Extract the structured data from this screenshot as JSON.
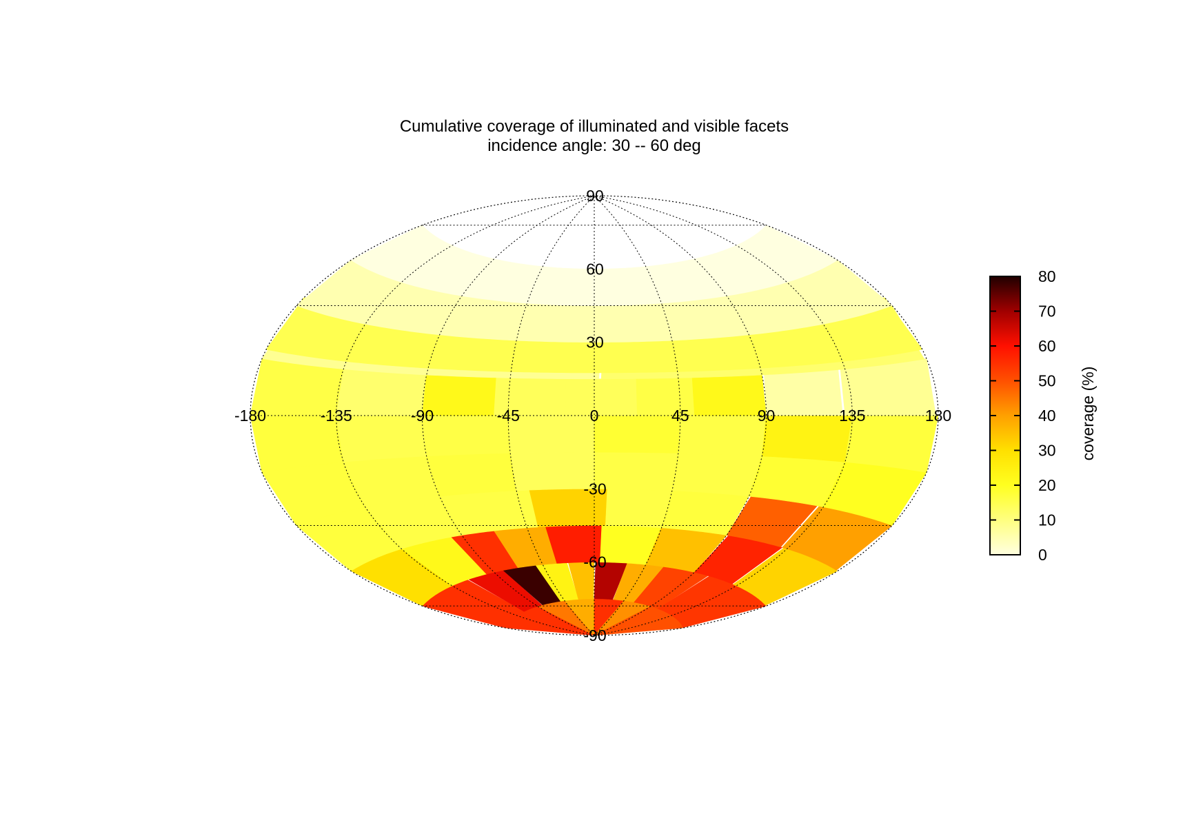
{
  "chart_data": {
    "type": "heatmap",
    "projection": "aitoff",
    "title": "Cumulative coverage of illuminated and visible facets",
    "subtitle": "incidence angle: 30 -- 60 deg",
    "xticks": [
      -180,
      -135,
      -90,
      -45,
      0,
      45,
      90,
      135,
      180
    ],
    "yticks": [
      90,
      60,
      30,
      -30,
      -60,
      -90
    ],
    "xlim": [
      -180,
      180
    ],
    "ylim": [
      -90,
      90
    ],
    "grid": true,
    "colorbar": {
      "label": "coverage (%)",
      "range": [
        0,
        80
      ],
      "ticks": [
        0,
        10,
        20,
        30,
        40,
        50,
        60,
        70,
        80
      ],
      "colors": [
        "#ffffe0",
        "#ffff80",
        "#ffff20",
        "#ffe000",
        "#ffa000",
        "#ff5000",
        "#ff1000",
        "#a00000",
        "#200000"
      ]
    },
    "cells": [
      {
        "lon": -157.5,
        "lat": 52.5,
        "value": 0
      },
      {
        "lon": -67.5,
        "lat": 22.5,
        "value": 8
      },
      {
        "lon": 7.5,
        "lat": 37.5,
        "value": 5
      },
      {
        "lon": 15,
        "lat": 25,
        "value": 15
      },
      {
        "lon": 75,
        "lat": 22.5,
        "value": 12
      },
      {
        "lon": 150,
        "lat": 7.5,
        "value": 8
      },
      {
        "lon": -157.5,
        "lat": 7.5,
        "value": 16
      },
      {
        "lon": -112.5,
        "lat": 7.5,
        "value": 12
      },
      {
        "lon": -67.5,
        "lat": 7.5,
        "value": 22
      },
      {
        "lon": -37.5,
        "lat": 7.5,
        "value": 14
      },
      {
        "lon": 7.5,
        "lat": 7.5,
        "value": 14
      },
      {
        "lon": 37.5,
        "lat": 7.5,
        "value": 16
      },
      {
        "lon": 67.5,
        "lat": 7.5,
        "value": 22
      },
      {
        "lon": 112.5,
        "lat": 7.5,
        "value": 6
      },
      {
        "lon": -157.5,
        "lat": -7.5,
        "value": 17
      },
      {
        "lon": -112.5,
        "lat": -7.5,
        "value": 15
      },
      {
        "lon": -67.5,
        "lat": -7.5,
        "value": 16
      },
      {
        "lon": -22.5,
        "lat": -7.5,
        "value": 14
      },
      {
        "lon": 22.5,
        "lat": -7.5,
        "value": 18
      },
      {
        "lon": 67.5,
        "lat": -7.5,
        "value": 16
      },
      {
        "lon": 112.5,
        "lat": -7.5,
        "value": 24
      },
      {
        "lon": 157.5,
        "lat": -7.5,
        "value": 17
      },
      {
        "lon": -157.5,
        "lat": -22.5,
        "value": 17
      },
      {
        "lon": -112.5,
        "lat": -22.5,
        "value": 16
      },
      {
        "lon": -67.5,
        "lat": -22.5,
        "value": 17
      },
      {
        "lon": -22.5,
        "lat": -22.5,
        "value": 14
      },
      {
        "lon": 22.5,
        "lat": -22.5,
        "value": 16
      },
      {
        "lon": 67.5,
        "lat": -22.5,
        "value": 16
      },
      {
        "lon": 112.5,
        "lat": -22.5,
        "value": 18
      },
      {
        "lon": 157.5,
        "lat": -22.5,
        "value": 20
      },
      {
        "lon": -157.5,
        "lat": -37.5,
        "value": 17
      },
      {
        "lon": -112.5,
        "lat": -37.5,
        "value": 16
      },
      {
        "lon": -67.5,
        "lat": -37.5,
        "value": 16
      },
      {
        "lon": -7.5,
        "lat": -37.5,
        "value": 32
      },
      {
        "lon": 22.5,
        "lat": -37.5,
        "value": 16
      },
      {
        "lon": 67.5,
        "lat": -37.5,
        "value": 17
      },
      {
        "lon": 112.5,
        "lat": -37.5,
        "value": 48
      },
      {
        "lon": 150,
        "lat": -37.5,
        "value": 40
      },
      {
        "lon": -157.5,
        "lat": -52.5,
        "value": 30
      },
      {
        "lon": -112.5,
        "lat": -52.5,
        "value": 22
      },
      {
        "lon": -82.5,
        "lat": -52.5,
        "value": 55
      },
      {
        "lon": -52.5,
        "lat": -52.5,
        "value": 38
      },
      {
        "lon": -12.5,
        "lat": -52.5,
        "value": 58
      },
      {
        "lon": 22.5,
        "lat": -52.5,
        "value": 20
      },
      {
        "lon": 67.5,
        "lat": -52.5,
        "value": 35
      },
      {
        "lon": 112.5,
        "lat": -52.5,
        "value": 57
      },
      {
        "lon": 150,
        "lat": -52.5,
        "value": 32
      },
      {
        "lon": -140,
        "lat": -67.5,
        "value": 55
      },
      {
        "lon": -95,
        "lat": -67.5,
        "value": 62
      },
      {
        "lon": -67.5,
        "lat": -67.5,
        "value": 78
      },
      {
        "lon": -35,
        "lat": -67.5,
        "value": 24
      },
      {
        "lon": -12.5,
        "lat": -67.5,
        "value": 35
      },
      {
        "lon": 12.5,
        "lat": -67.5,
        "value": 68
      },
      {
        "lon": 45,
        "lat": -67.5,
        "value": 38
      },
      {
        "lon": 77.5,
        "lat": -67.5,
        "value": 52
      },
      {
        "lon": 130,
        "lat": -67.5,
        "value": 54
      },
      {
        "lon": -112.5,
        "lat": -82.5,
        "value": 55
      },
      {
        "lon": -67.5,
        "lat": -82.5,
        "value": 45
      },
      {
        "lon": -22.5,
        "lat": -82.5,
        "value": 38
      },
      {
        "lon": 22.5,
        "lat": -82.5,
        "value": 55
      },
      {
        "lon": 67.5,
        "lat": -82.5,
        "value": 42
      },
      {
        "lon": 112.5,
        "lat": -82.5,
        "value": 50
      }
    ]
  }
}
